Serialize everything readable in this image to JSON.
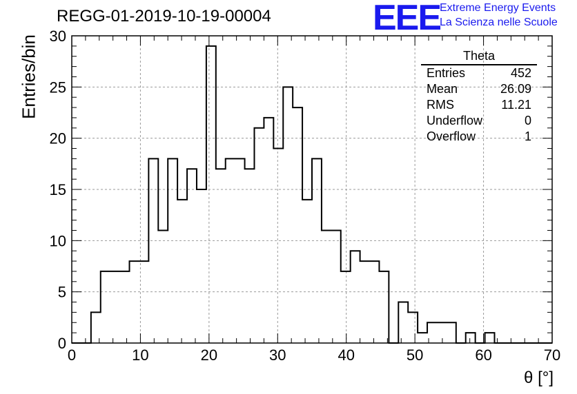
{
  "header": {
    "title": "REGG-01-2019-10-19-00004",
    "logo_text": "EEE",
    "logo_line1": "Extreme Energy Events",
    "logo_line2": "La Scienza nelle Scuole"
  },
  "stats_box": {
    "title": "Theta",
    "rows": [
      {
        "label": "Entries",
        "value": "452"
      },
      {
        "label": "Mean",
        "value": "26.09"
      },
      {
        "label": "RMS",
        "value": "11.21"
      },
      {
        "label": "Underflow",
        "value": "0"
      },
      {
        "label": "Overflow",
        "value": "1"
      }
    ]
  },
  "colors": {
    "line": "#000000",
    "grid": "#999999",
    "logo": "#1a1aee"
  },
  "chart_data": {
    "type": "bar",
    "style": "step-histogram",
    "title": "REGG-01-2019-10-19-00004",
    "xlabel": "θ [°]",
    "ylabel": "Entries/bin",
    "xlim": [
      0,
      70
    ],
    "ylim": [
      0,
      30
    ],
    "bin_width": 1.4,
    "x_ticks": [
      0,
      10,
      20,
      30,
      40,
      50,
      60,
      70
    ],
    "y_ticks": [
      0,
      5,
      10,
      15,
      20,
      25,
      30
    ],
    "grid": true,
    "legend": "top-right stats box",
    "bin_edges": [
      0,
      1.4,
      2.8,
      4.2,
      5.6,
      7.0,
      8.4,
      9.8,
      11.2,
      12.6,
      14.0,
      15.4,
      16.8,
      18.2,
      19.6,
      21.0,
      22.4,
      23.8,
      25.2,
      26.6,
      28.0,
      29.4,
      30.8,
      32.2,
      33.6,
      35.0,
      36.4,
      37.8,
      39.2,
      40.6,
      42.0,
      43.4,
      44.8,
      46.2,
      47.6,
      49.0,
      50.4,
      51.8,
      53.2,
      54.6,
      56.0,
      57.4,
      58.8,
      60.2,
      61.6,
      63.0,
      64.4,
      65.8,
      67.2,
      68.6,
      70.0
    ],
    "values": [
      0,
      0,
      3,
      7,
      7,
      7,
      8,
      8,
      18,
      11,
      18,
      14,
      17,
      15,
      29,
      17,
      18,
      18,
      17,
      21,
      22,
      19,
      25,
      23,
      14,
      18,
      11,
      11,
      7,
      9,
      8,
      8,
      7,
      0,
      4,
      3,
      1,
      2,
      2,
      2,
      0,
      1,
      0,
      1,
      0,
      0,
      0,
      0,
      0,
      0
    ]
  }
}
